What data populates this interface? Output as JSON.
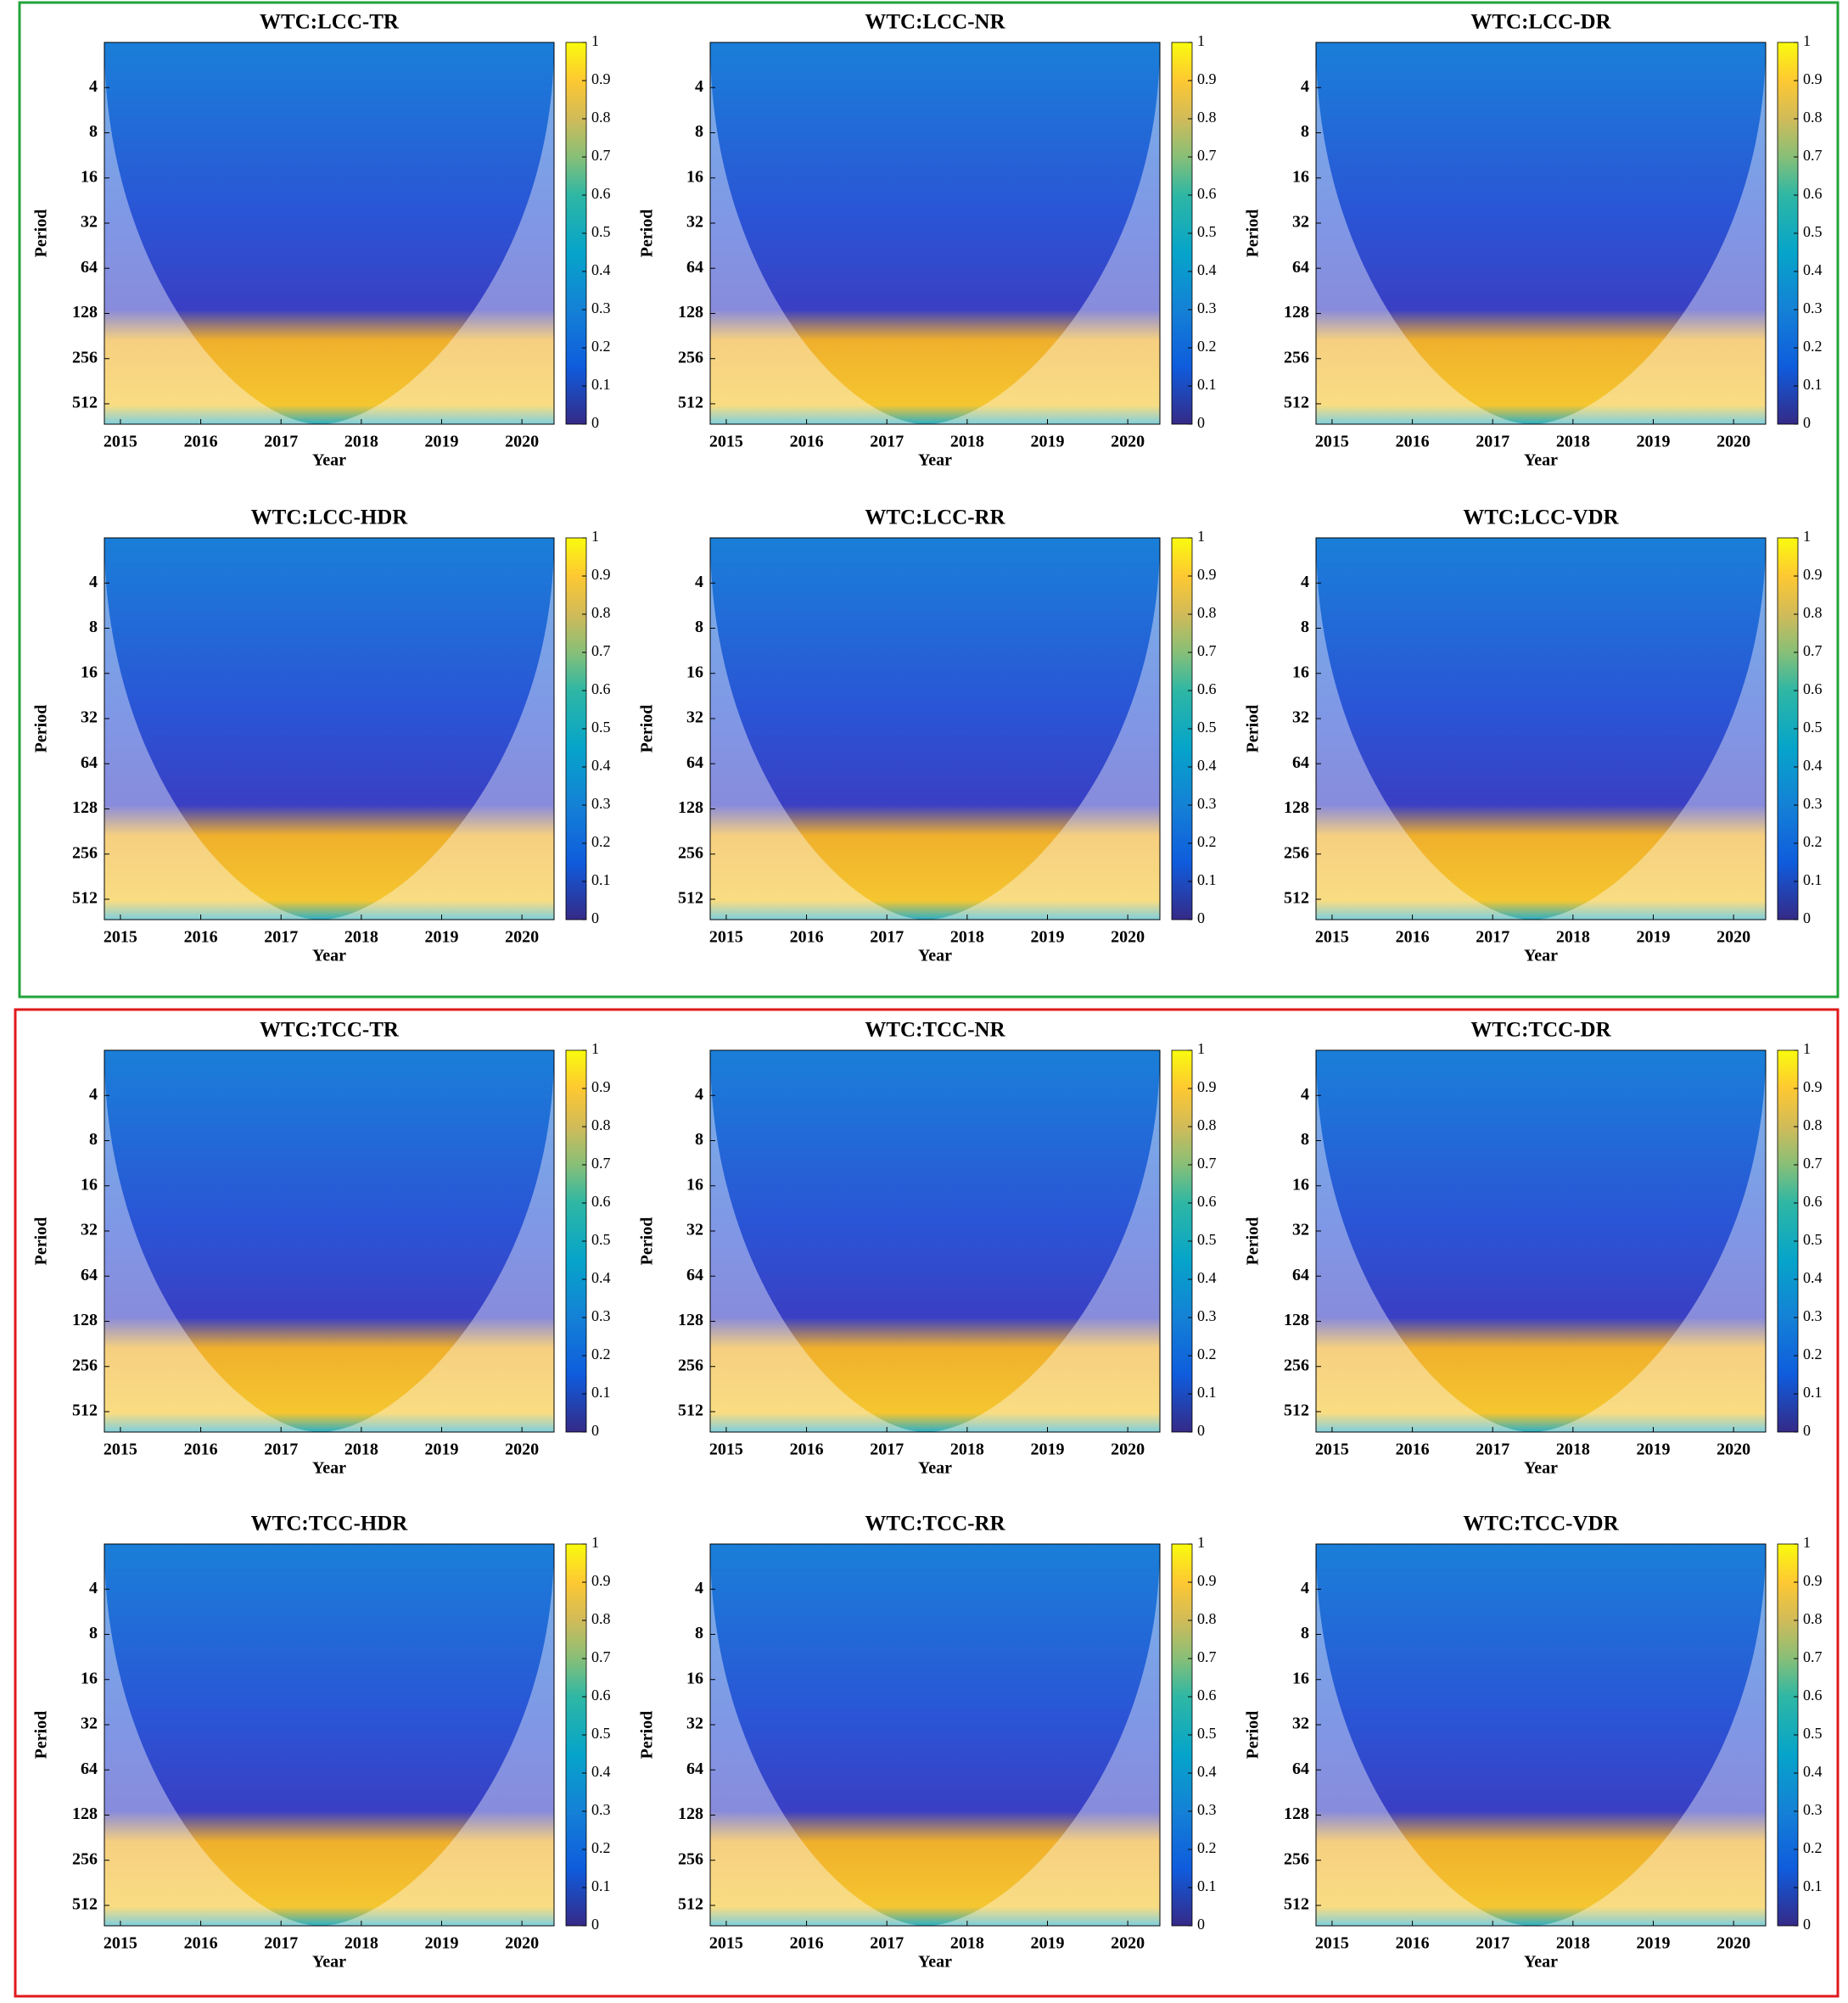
{
  "chart_data": [
    {
      "type": "wavelet_coherence",
      "title": "WTC:LCC-TR",
      "xlabel": "Year",
      "ylabel": "Period",
      "xlim": [
        2014.8,
        2020.4
      ],
      "xticks": [
        2015,
        2016,
        2017,
        2018,
        2019,
        2020
      ],
      "ylim": [
        2,
        700
      ],
      "yscale": "log",
      "yticks": [
        4,
        8,
        16,
        32,
        64,
        128,
        256,
        512
      ],
      "clim": [
        0,
        1
      ],
      "cticks": [
        0,
        0.1,
        0.2,
        0.3,
        0.4,
        0.5,
        0.6,
        0.7,
        0.8,
        0.9,
        1
      ]
    },
    {
      "type": "wavelet_coherence",
      "title": "WTC:LCC-NR",
      "xlabel": "Year",
      "ylabel": "Period",
      "xlim": [
        2014.8,
        2020.4
      ],
      "xticks": [
        2015,
        2016,
        2017,
        2018,
        2019,
        2020
      ],
      "ylim": [
        2,
        700
      ],
      "yscale": "log",
      "yticks": [
        4,
        8,
        16,
        32,
        64,
        128,
        256,
        512
      ],
      "clim": [
        0,
        1
      ],
      "cticks": [
        0,
        0.1,
        0.2,
        0.3,
        0.4,
        0.5,
        0.6,
        0.7,
        0.8,
        0.9,
        1
      ]
    },
    {
      "type": "wavelet_coherence",
      "title": "WTC:LCC-DR",
      "xlabel": "Year",
      "ylabel": "Period",
      "xlim": [
        2014.8,
        2020.4
      ],
      "xticks": [
        2015,
        2016,
        2017,
        2018,
        2019,
        2020
      ],
      "ylim": [
        2,
        700
      ],
      "yscale": "log",
      "yticks": [
        4,
        8,
        16,
        32,
        64,
        128,
        256,
        512
      ],
      "clim": [
        0,
        1
      ],
      "cticks": [
        0,
        0.1,
        0.2,
        0.3,
        0.4,
        0.5,
        0.6,
        0.7,
        0.8,
        0.9,
        1
      ]
    },
    {
      "type": "wavelet_coherence",
      "title": "WTC:LCC-HDR",
      "xlabel": "Year",
      "ylabel": "Period",
      "xlim": [
        2014.8,
        2020.4
      ],
      "xticks": [
        2015,
        2016,
        2017,
        2018,
        2019,
        2020
      ],
      "ylim": [
        2,
        700
      ],
      "yscale": "log",
      "yticks": [
        4,
        8,
        16,
        32,
        64,
        128,
        256,
        512
      ],
      "clim": [
        0,
        1
      ],
      "cticks": [
        0,
        0.1,
        0.2,
        0.3,
        0.4,
        0.5,
        0.6,
        0.7,
        0.8,
        0.9,
        1
      ]
    },
    {
      "type": "wavelet_coherence",
      "title": "WTC:LCC-RR",
      "xlabel": "Year",
      "ylabel": "Period",
      "xlim": [
        2014.8,
        2020.4
      ],
      "xticks": [
        2015,
        2016,
        2017,
        2018,
        2019,
        2020
      ],
      "ylim": [
        2,
        700
      ],
      "yscale": "log",
      "yticks": [
        4,
        8,
        16,
        32,
        64,
        128,
        256,
        512
      ],
      "clim": [
        0,
        1
      ],
      "cticks": [
        0,
        0.1,
        0.2,
        0.3,
        0.4,
        0.5,
        0.6,
        0.7,
        0.8,
        0.9,
        1
      ]
    },
    {
      "type": "wavelet_coherence",
      "title": "WTC:LCC-VDR",
      "xlabel": "Year",
      "ylabel": "Period",
      "xlim": [
        2014.8,
        2020.4
      ],
      "xticks": [
        2015,
        2016,
        2017,
        2018,
        2019,
        2020
      ],
      "ylim": [
        2,
        700
      ],
      "yscale": "log",
      "yticks": [
        4,
        8,
        16,
        32,
        64,
        128,
        256,
        512
      ],
      "clim": [
        0,
        1
      ],
      "cticks": [
        0,
        0.1,
        0.2,
        0.3,
        0.4,
        0.5,
        0.6,
        0.7,
        0.8,
        0.9,
        1
      ]
    },
    {
      "type": "wavelet_coherence",
      "title": "WTC:TCC-TR",
      "xlabel": "Year",
      "ylabel": "Period",
      "xlim": [
        2014.8,
        2020.4
      ],
      "xticks": [
        2015,
        2016,
        2017,
        2018,
        2019,
        2020
      ],
      "ylim": [
        2,
        700
      ],
      "yscale": "log",
      "yticks": [
        4,
        8,
        16,
        32,
        64,
        128,
        256,
        512
      ],
      "clim": [
        0,
        1
      ],
      "cticks": [
        0,
        0.1,
        0.2,
        0.3,
        0.4,
        0.5,
        0.6,
        0.7,
        0.8,
        0.9,
        1
      ]
    },
    {
      "type": "wavelet_coherence",
      "title": "WTC:TCC-NR",
      "xlabel": "Year",
      "ylabel": "Period",
      "xlim": [
        2014.8,
        2020.4
      ],
      "xticks": [
        2015,
        2016,
        2017,
        2018,
        2019,
        2020
      ],
      "ylim": [
        2,
        700
      ],
      "yscale": "log",
      "yticks": [
        4,
        8,
        16,
        32,
        64,
        128,
        256,
        512
      ],
      "clim": [
        0,
        1
      ],
      "cticks": [
        0,
        0.1,
        0.2,
        0.3,
        0.4,
        0.5,
        0.6,
        0.7,
        0.8,
        0.9,
        1
      ]
    },
    {
      "type": "wavelet_coherence",
      "title": "WTC:TCC-DR",
      "xlabel": "Year",
      "ylabel": "Period",
      "xlim": [
        2014.8,
        2020.4
      ],
      "xticks": [
        2015,
        2016,
        2017,
        2018,
        2019,
        2020
      ],
      "ylim": [
        2,
        700
      ],
      "yscale": "log",
      "yticks": [
        4,
        8,
        16,
        32,
        64,
        128,
        256,
        512
      ],
      "clim": [
        0,
        1
      ],
      "cticks": [
        0,
        0.1,
        0.2,
        0.3,
        0.4,
        0.5,
        0.6,
        0.7,
        0.8,
        0.9,
        1
      ]
    },
    {
      "type": "wavelet_coherence",
      "title": "WTC:TCC-HDR",
      "xlabel": "Year",
      "ylabel": "Period",
      "xlim": [
        2014.8,
        2020.4
      ],
      "xticks": [
        2015,
        2016,
        2017,
        2018,
        2019,
        2020
      ],
      "ylim": [
        2,
        700
      ],
      "yscale": "log",
      "yticks": [
        4,
        8,
        16,
        32,
        64,
        128,
        256,
        512
      ],
      "clim": [
        0,
        1
      ],
      "cticks": [
        0,
        0.1,
        0.2,
        0.3,
        0.4,
        0.5,
        0.6,
        0.7,
        0.8,
        0.9,
        1
      ]
    },
    {
      "type": "wavelet_coherence",
      "title": "WTC:TCC-RR",
      "xlabel": "Year",
      "ylabel": "Period",
      "xlim": [
        2014.8,
        2020.4
      ],
      "xticks": [
        2015,
        2016,
        2017,
        2018,
        2019,
        2020
      ],
      "ylim": [
        2,
        700
      ],
      "yscale": "log",
      "yticks": [
        4,
        8,
        16,
        32,
        64,
        128,
        256,
        512
      ],
      "clim": [
        0,
        1
      ],
      "cticks": [
        0,
        0.1,
        0.2,
        0.3,
        0.4,
        0.5,
        0.6,
        0.7,
        0.8,
        0.9,
        1
      ]
    },
    {
      "type": "wavelet_coherence",
      "title": "WTC:TCC-VDR",
      "xlabel": "Year",
      "ylabel": "Period",
      "xlim": [
        2014.8,
        2020.4
      ],
      "xticks": [
        2015,
        2016,
        2017,
        2018,
        2019,
        2020
      ],
      "ylim": [
        2,
        700
      ],
      "yscale": "log",
      "yticks": [
        4,
        8,
        16,
        32,
        64,
        128,
        256,
        512
      ],
      "clim": [
        0,
        1
      ],
      "cticks": [
        0,
        0.1,
        0.2,
        0.3,
        0.4,
        0.5,
        0.6,
        0.7,
        0.8,
        0.9,
        1
      ]
    }
  ]
}
